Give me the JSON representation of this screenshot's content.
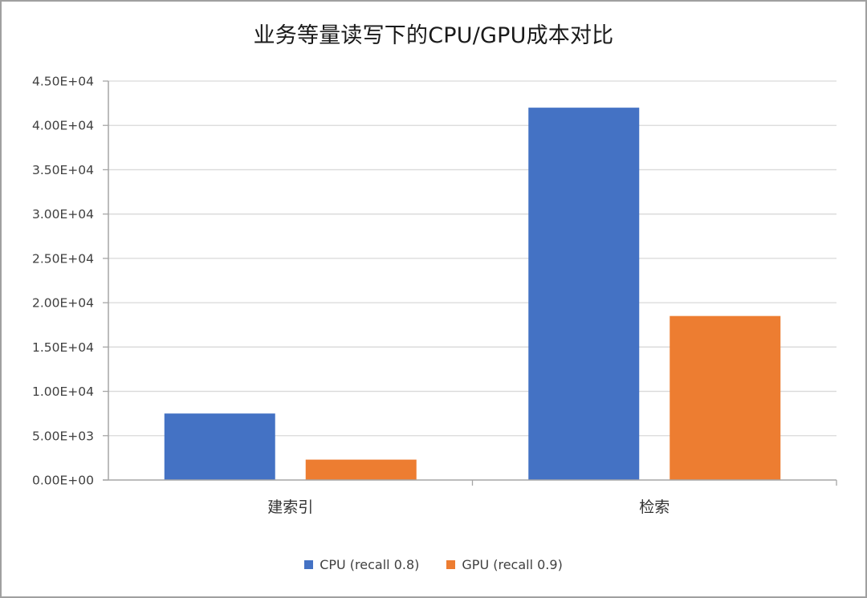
{
  "chart_data": {
    "type": "bar",
    "title": "业务等量读写下的CPU/GPU成本对比",
    "xlabel": "",
    "ylabel": "",
    "categories": [
      "建索引",
      "检索"
    ],
    "series": [
      {
        "name": "CPU (recall 0.8)",
        "color": "#4472C4",
        "values": [
          7500,
          42000
        ]
      },
      {
        "name": "GPU (recall 0.9)",
        "color": "#ED7D31",
        "values": [
          2300,
          18500
        ]
      }
    ],
    "ylim": [
      0,
      45000
    ],
    "yticks": [
      0,
      5000,
      10000,
      15000,
      20000,
      25000,
      30000,
      35000,
      40000,
      45000
    ],
    "ytick_labels": [
      "0.00E+00",
      "5.00E+03",
      "1.00E+04",
      "1.50E+04",
      "2.00E+04",
      "2.50E+04",
      "3.00E+04",
      "3.50E+04",
      "4.00E+04",
      "4.50E+04"
    ],
    "grid": true,
    "legend_position": "bottom"
  },
  "title": "业务等量读写下的CPU/GPU成本对比",
  "legend": [
    {
      "label": "CPU (recall 0.8)",
      "color": "#4472C4"
    },
    {
      "label": "GPU (recall 0.9)",
      "color": "#ED7D31"
    }
  ]
}
